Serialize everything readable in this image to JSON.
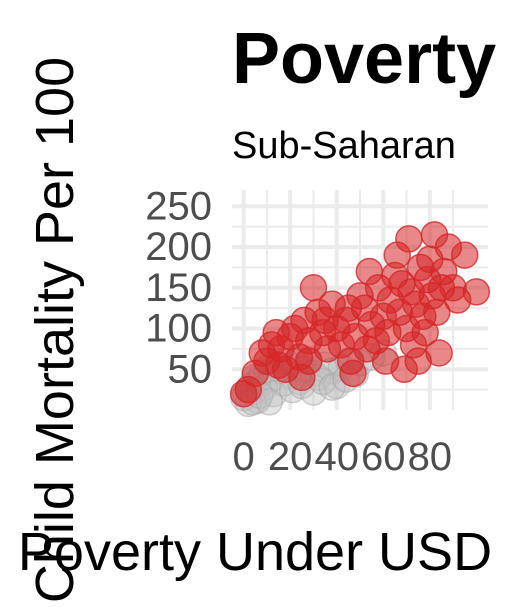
{
  "chart_data": {
    "type": "scatter",
    "title": "Poverty",
    "subtitle": "Sub-Saharan",
    "xlabel": "Poverty Under USD",
    "ylabel": "Child Mortality Per 100",
    "xlim": [
      -5,
      105
    ],
    "ylim": [
      0,
      270
    ],
    "x_ticks": [
      0,
      20,
      40,
      60,
      80
    ],
    "x_tick_labels": [
      "0",
      "20",
      "40",
      "60",
      "80"
    ],
    "y_ticks": [
      50,
      100,
      150,
      200,
      250
    ],
    "y_tick_labels": [
      "50",
      "100",
      "150",
      "200",
      "250"
    ],
    "grid": true,
    "series": [
      {
        "color": "#bfbfbf",
        "points": [
          [
            0,
            15
          ],
          [
            1,
            20
          ],
          [
            2,
            25
          ],
          [
            3,
            30
          ],
          [
            4,
            22
          ],
          [
            5,
            40
          ],
          [
            6,
            35
          ],
          [
            8,
            45
          ],
          [
            10,
            50
          ],
          [
            12,
            38
          ],
          [
            14,
            55
          ],
          [
            16,
            48
          ],
          [
            18,
            60
          ],
          [
            20,
            42
          ],
          [
            22,
            58
          ],
          [
            24,
            35
          ],
          [
            26,
            50
          ],
          [
            28,
            62
          ],
          [
            30,
            45
          ],
          [
            32,
            40
          ],
          [
            35,
            55
          ],
          [
            38,
            48
          ],
          [
            40,
            30
          ],
          [
            42,
            52
          ],
          [
            45,
            60
          ],
          [
            48,
            44
          ],
          [
            50,
            58
          ],
          [
            55,
            65
          ],
          [
            60,
            70
          ],
          [
            6,
            12
          ],
          [
            9,
            28
          ],
          [
            13,
            20
          ],
          [
            17,
            33
          ],
          [
            21,
            25
          ],
          [
            25,
            30
          ],
          [
            30,
            22
          ],
          [
            34,
            35
          ],
          [
            38,
            28
          ],
          [
            44,
            38
          ],
          [
            2,
            8
          ],
          [
            4,
            10
          ],
          [
            7,
            18
          ],
          [
            11,
            10
          ]
        ]
      },
      {
        "color": "#d62728",
        "points": [
          [
            0,
            20
          ],
          [
            2,
            25
          ],
          [
            5,
            45
          ],
          [
            8,
            70
          ],
          [
            10,
            60
          ],
          [
            12,
            80
          ],
          [
            14,
            95
          ],
          [
            16,
            75
          ],
          [
            18,
            50
          ],
          [
            20,
            90
          ],
          [
            22,
            100
          ],
          [
            24,
            65
          ],
          [
            26,
            110
          ],
          [
            28,
            85
          ],
          [
            30,
            150
          ],
          [
            32,
            120
          ],
          [
            34,
            95
          ],
          [
            36,
            75
          ],
          [
            38,
            130
          ],
          [
            40,
            100
          ],
          [
            42,
            80
          ],
          [
            44,
            110
          ],
          [
            46,
            60
          ],
          [
            48,
            90
          ],
          [
            50,
            140
          ],
          [
            52,
            125
          ],
          [
            54,
            170
          ],
          [
            55,
            105
          ],
          [
            57,
            85
          ],
          [
            58,
            150
          ],
          [
            60,
            115
          ],
          [
            62,
            95
          ],
          [
            63,
            135
          ],
          [
            65,
            165
          ],
          [
            66,
            190
          ],
          [
            67,
            120
          ],
          [
            68,
            155
          ],
          [
            70,
            100
          ],
          [
            71,
            210
          ],
          [
            72,
            145
          ],
          [
            73,
            80
          ],
          [
            74,
            130
          ],
          [
            75,
            60
          ],
          [
            76,
            175
          ],
          [
            77,
            115
          ],
          [
            78,
            95
          ],
          [
            79,
            160
          ],
          [
            80,
            185
          ],
          [
            81,
            140
          ],
          [
            82,
            215
          ],
          [
            83,
            120
          ],
          [
            84,
            70
          ],
          [
            85,
            150
          ],
          [
            86,
            170
          ],
          [
            88,
            200
          ],
          [
            90,
            150
          ],
          [
            92,
            135
          ],
          [
            95,
            190
          ],
          [
            100,
            145
          ],
          [
            28,
            60
          ],
          [
            35,
            110
          ],
          [
            45,
            125
          ],
          [
            53,
            75
          ],
          [
            61,
            60
          ],
          [
            69,
            50
          ],
          [
            15,
            55
          ],
          [
            25,
            40
          ],
          [
            47,
            45
          ]
        ]
      }
    ]
  },
  "colors": {
    "grid": "#ebebeb",
    "grey_points": "#bfbfbf",
    "red_points": "#d62728"
  }
}
